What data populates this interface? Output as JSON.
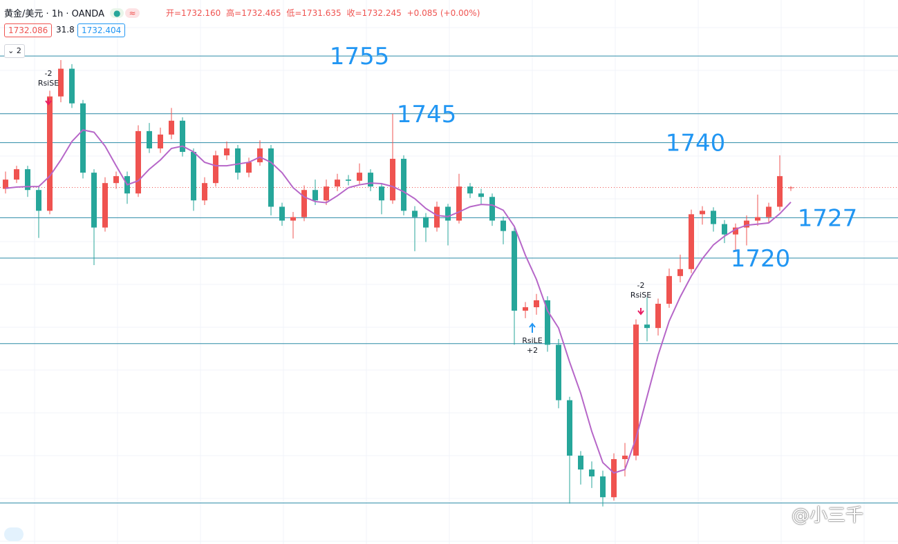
{
  "header": {
    "symbol": "黄金/美元 · 1h · OANDA",
    "ohlc": [
      "开=1732.160",
      "高=1732.465",
      "低=1731.635",
      "收=1732.245",
      "+0.085 (+0.00%)"
    ],
    "bid": "1732.086",
    "spread": "31.8",
    "ask": "1732.404",
    "collapse": "2",
    "watermark": "@小三千"
  },
  "signals": [
    [
      "-2",
      "RsiSE"
    ],
    [
      "-2",
      "RsiSE"
    ],
    [
      "RsiLE",
      "+2"
    ]
  ],
  "chart_data": {
    "type": "candlestick",
    "up_color": "#ef5350",
    "down_color": "#26a69a",
    "ylim": [
      1670.5,
      1764.7
    ],
    "grid": true,
    "levels": [
      1755,
      1745,
      1740,
      1727,
      1720
    ],
    "lines": [
      1705.2,
      1677.6
    ],
    "level_color": "#2a8aa6",
    "label_color": "#2196f3",
    "candles": [
      [
        1732.0,
        1735.0,
        1731.2,
        1733.6
      ],
      [
        1733.6,
        1736.0,
        1733.0,
        1735.4
      ],
      [
        1735.4,
        1736.0,
        1730.6,
        1731.8
      ],
      [
        1731.8,
        1732.4,
        1723.5,
        1728.2
      ],
      [
        1728.2,
        1749.0,
        1727.6,
        1748.0
      ],
      [
        1748.0,
        1754.3,
        1747.0,
        1752.8
      ],
      [
        1752.8,
        1753.6,
        1746.0,
        1746.8
      ],
      [
        1746.8,
        1747.4,
        1733.8,
        1734.8
      ],
      [
        1734.8,
        1735.4,
        1718.8,
        1725.3
      ],
      [
        1725.3,
        1734.0,
        1724.6,
        1733.0
      ],
      [
        1733.0,
        1735.0,
        1732.0,
        1734.2
      ],
      [
        1734.2,
        1735.0,
        1729.4,
        1731.2
      ],
      [
        1731.2,
        1743.0,
        1730.6,
        1742.0
      ],
      [
        1742.0,
        1743.4,
        1738.2,
        1739.0
      ],
      [
        1739.0,
        1742.6,
        1738.2,
        1741.4
      ],
      [
        1741.4,
        1746.0,
        1740.6,
        1743.8
      ],
      [
        1743.8,
        1744.4,
        1737.6,
        1738.4
      ],
      [
        1738.4,
        1739.0,
        1728.2,
        1730.0
      ],
      [
        1730.0,
        1734.0,
        1729.2,
        1733.0
      ],
      [
        1733.0,
        1738.6,
        1732.4,
        1737.8
      ],
      [
        1737.8,
        1740.2,
        1737.0,
        1739.0
      ],
      [
        1739.0,
        1739.6,
        1733.6,
        1734.8
      ],
      [
        1734.8,
        1737.4,
        1734.0,
        1736.6
      ],
      [
        1736.6,
        1740.4,
        1736.0,
        1739.0
      ],
      [
        1739.0,
        1739.6,
        1727.4,
        1728.9
      ],
      [
        1728.9,
        1729.6,
        1725.6,
        1726.5
      ],
      [
        1726.5,
        1728.0,
        1723.4,
        1727.1
      ],
      [
        1727.1,
        1732.6,
        1726.4,
        1731.8
      ],
      [
        1731.8,
        1733.6,
        1729.2,
        1730.0
      ],
      [
        1730.0,
        1733.6,
        1729.2,
        1732.4
      ],
      [
        1732.4,
        1734.6,
        1731.6,
        1733.6
      ],
      [
        1733.6,
        1734.4,
        1732.6,
        1733.4
      ],
      [
        1733.4,
        1736.4,
        1732.8,
        1734.8
      ],
      [
        1734.8,
        1735.4,
        1731.6,
        1732.4
      ],
      [
        1732.4,
        1733.0,
        1727.6,
        1730.0
      ],
      [
        1730.0,
        1745.0,
        1729.4,
        1737.2
      ],
      [
        1737.2,
        1737.8,
        1727.4,
        1728.2
      ],
      [
        1728.2,
        1729.0,
        1721.2,
        1727.1
      ],
      [
        1727.1,
        1727.8,
        1722.8,
        1725.3
      ],
      [
        1725.3,
        1729.8,
        1724.6,
        1728.9
      ],
      [
        1728.9,
        1729.4,
        1722.2,
        1726.5
      ],
      [
        1726.5,
        1734.6,
        1726.0,
        1732.4
      ],
      [
        1732.4,
        1733.0,
        1730.4,
        1731.2
      ],
      [
        1731.2,
        1732.0,
        1729.4,
        1730.6
      ],
      [
        1730.6,
        1731.2,
        1725.6,
        1726.5
      ],
      [
        1726.5,
        1727.2,
        1722.4,
        1724.7
      ],
      [
        1724.7,
        1725.4,
        1705.0,
        1710.9
      ],
      [
        1710.9,
        1712.4,
        1709.6,
        1711.5
      ],
      [
        1711.5,
        1713.8,
        1710.2,
        1712.7
      ],
      [
        1712.7,
        1713.4,
        1703.8,
        1705.0
      ],
      [
        1705.0,
        1706.0,
        1694.0,
        1695.4
      ],
      [
        1695.4,
        1696.0,
        1677.5,
        1685.8
      ],
      [
        1685.8,
        1686.6,
        1680.8,
        1683.4
      ],
      [
        1683.4,
        1684.8,
        1680.2,
        1682.2
      ],
      [
        1682.2,
        1683.2,
        1677.0,
        1678.6
      ],
      [
        1678.6,
        1686.2,
        1678.0,
        1685.2
      ],
      [
        1685.2,
        1688.0,
        1682.2,
        1685.8
      ],
      [
        1685.8,
        1709.4,
        1685.0,
        1708.5
      ],
      [
        1708.5,
        1713.2,
        1705.6,
        1707.9
      ],
      [
        1707.9,
        1713.0,
        1706.6,
        1712.1
      ],
      [
        1712.1,
        1718.2,
        1711.4,
        1716.9
      ],
      [
        1716.9,
        1720.6,
        1715.8,
        1718.1
      ],
      [
        1718.1,
        1728.4,
        1717.4,
        1727.6
      ],
      [
        1727.6,
        1729.0,
        1725.8,
        1728.2
      ],
      [
        1728.2,
        1728.8,
        1724.6,
        1725.9
      ],
      [
        1725.9,
        1726.6,
        1722.6,
        1724.1
      ],
      [
        1724.1,
        1726.0,
        1721.4,
        1725.3
      ],
      [
        1725.3,
        1727.4,
        1722.2,
        1726.5
      ],
      [
        1726.5,
        1731.0,
        1725.6,
        1727.1
      ],
      [
        1727.1,
        1729.6,
        1726.2,
        1728.9
      ],
      [
        1728.9,
        1737.8,
        1728.2,
        1734.2
      ],
      [
        1732.16,
        1732.465,
        1731.635,
        1732.245
      ]
    ],
    "ma": {
      "color": "#b666c8",
      "values": [
        1732.1,
        1732.3,
        1732.4,
        1732.4,
        1734.2,
        1737.0,
        1740.2,
        1742.2,
        1741.8,
        1739.4,
        1736.0,
        1732.7,
        1733.4,
        1735.4,
        1737.0,
        1739.0,
        1739.4,
        1738.4,
        1736.6,
        1736.0,
        1736.0,
        1736.3,
        1736.6,
        1737.5,
        1736.6,
        1734.8,
        1732.2,
        1730.6,
        1729.8,
        1729.6,
        1730.8,
        1732.2,
        1732.7,
        1733.0,
        1732.9,
        1732.4,
        1731.5,
        1730.3,
        1728.6,
        1727.4,
        1727.2,
        1728.0,
        1728.9,
        1729.3,
        1729.2,
        1728.3,
        1725.5,
        1720.5,
        1716.3,
        1710.9,
        1707.9,
        1702.0,
        1696.6,
        1690.0,
        1684.6,
        1682.8,
        1683.4,
        1688.8,
        1696.0,
        1703.2,
        1709.1,
        1713.3,
        1716.9,
        1719.9,
        1722.3,
        1723.8,
        1725.0,
        1725.7,
        1725.9,
        1726.1,
        1727.7,
        1729.7
      ]
    }
  }
}
